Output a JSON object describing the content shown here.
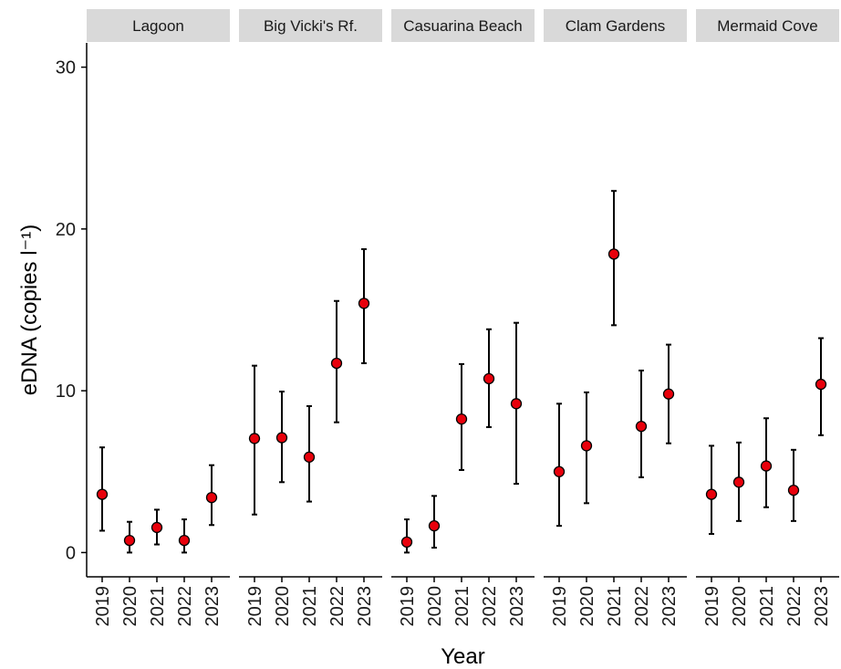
{
  "chart_data": {
    "type": "scatter",
    "title": "",
    "xlabel": "Year",
    "ylabel": "eDNA (copies l⁻¹)",
    "ylim": [
      -1.5,
      31.5
    ],
    "yticks": [
      0,
      10,
      20,
      30
    ],
    "x": [
      "2019",
      "2020",
      "2021",
      "2022",
      "2023"
    ],
    "grid": false,
    "legend": "none",
    "colors": {
      "point_fill": "#e8000b",
      "point_stroke": "#000000",
      "errorbar": "#000000",
      "strip_bg": "#d9d9d9"
    },
    "facets": [
      {
        "name": "Lagoon",
        "values": [
          3.6,
          0.75,
          1.55,
          0.75,
          3.4
        ],
        "lower": [
          1.35,
          0.0,
          0.5,
          0.0,
          1.7
        ],
        "upper": [
          6.5,
          1.9,
          2.65,
          2.05,
          5.4
        ]
      },
      {
        "name": "Big Vicki's Rf.",
        "values": [
          7.05,
          7.1,
          5.9,
          11.7,
          15.4
        ],
        "lower": [
          2.35,
          4.35,
          3.15,
          8.05,
          11.7
        ],
        "upper": [
          11.55,
          9.95,
          9.05,
          15.55,
          18.75
        ]
      },
      {
        "name": "Casuarina Beach",
        "values": [
          0.65,
          1.65,
          8.25,
          10.75,
          9.2
        ],
        "lower": [
          0.0,
          0.3,
          5.1,
          7.75,
          4.25
        ],
        "upper": [
          2.05,
          3.5,
          11.65,
          13.8,
          14.2
        ]
      },
      {
        "name": "Clam Gardens",
        "values": [
          5.0,
          6.6,
          18.45,
          7.8,
          9.8
        ],
        "lower": [
          1.65,
          3.05,
          14.05,
          4.65,
          6.75
        ],
        "upper": [
          9.2,
          9.9,
          22.35,
          11.25,
          12.85
        ]
      },
      {
        "name": "Mermaid Cove",
        "values": [
          3.6,
          4.35,
          5.35,
          3.85,
          10.4
        ],
        "lower": [
          1.15,
          1.95,
          2.8,
          1.95,
          7.25
        ],
        "upper": [
          6.6,
          6.8,
          8.3,
          6.35,
          13.25
        ]
      }
    ]
  }
}
